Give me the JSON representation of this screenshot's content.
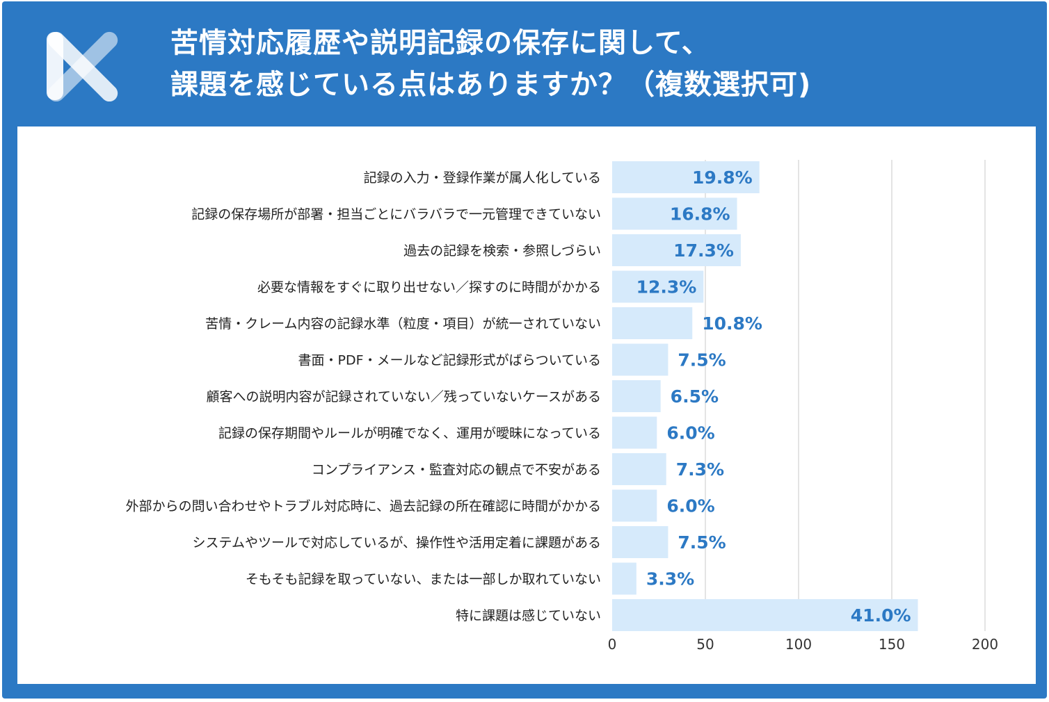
{
  "header": {
    "title_line1": "苦情対応履歴や説明記録の保存に関して、",
    "title_line2": "課題を感じている点はありますか？（複数選択可)",
    "logo_icon": "x-logo-icon"
  },
  "colors": {
    "frame": "#2c79c4",
    "bar": "#d6eafb",
    "value_label": "#2c79c4",
    "grid": "#dcdcdc"
  },
  "chart_data": {
    "type": "bar",
    "orientation": "horizontal",
    "title": "",
    "xlabel": "",
    "ylabel": "",
    "xlim": [
      0,
      200
    ],
    "x_ticks": [
      "0",
      "50",
      "100",
      "150",
      "200"
    ],
    "grid": true,
    "categories": [
      "記録の入力・登録作業が属人化している",
      "記録の保存場所が部署・担当ごとにバラバラで一元管理できていない",
      "過去の記録を検索・参照しづらい",
      "必要な情報をすぐに取り出せない／探すのに時間がかかる",
      "苦情・クレーム内容の記録水準（粒度・項目）が統一されていない",
      "書面・PDF・メールなど記録形式がばらついている",
      "顧客への説明内容が記録されていない／残っていないケースがある",
      "記録の保存期間やルールが明確でなく、運用が曖昧になっている",
      "コンプライアンス・監査対応の観点で不安がある",
      "外部からの問い合わせやトラブル対応時に、過去記録の所在確認に時間がかかる",
      "システムやツールで対応しているが、操作性や活用定着に課題がある",
      "そもそも記録を取っていない、または一部しか取れていない",
      "特に課題は感じていない"
    ],
    "values": [
      79,
      67,
      69,
      49,
      43,
      30,
      26,
      24,
      29,
      24,
      30,
      13,
      164
    ],
    "value_labels": [
      "19.8%",
      "16.8%",
      "17.3%",
      "12.3%",
      "10.8%",
      "7.5%",
      "6.5%",
      "6.0%",
      "7.3%",
      "6.0%",
      "7.5%",
      "3.3%",
      "41.0%"
    ]
  }
}
